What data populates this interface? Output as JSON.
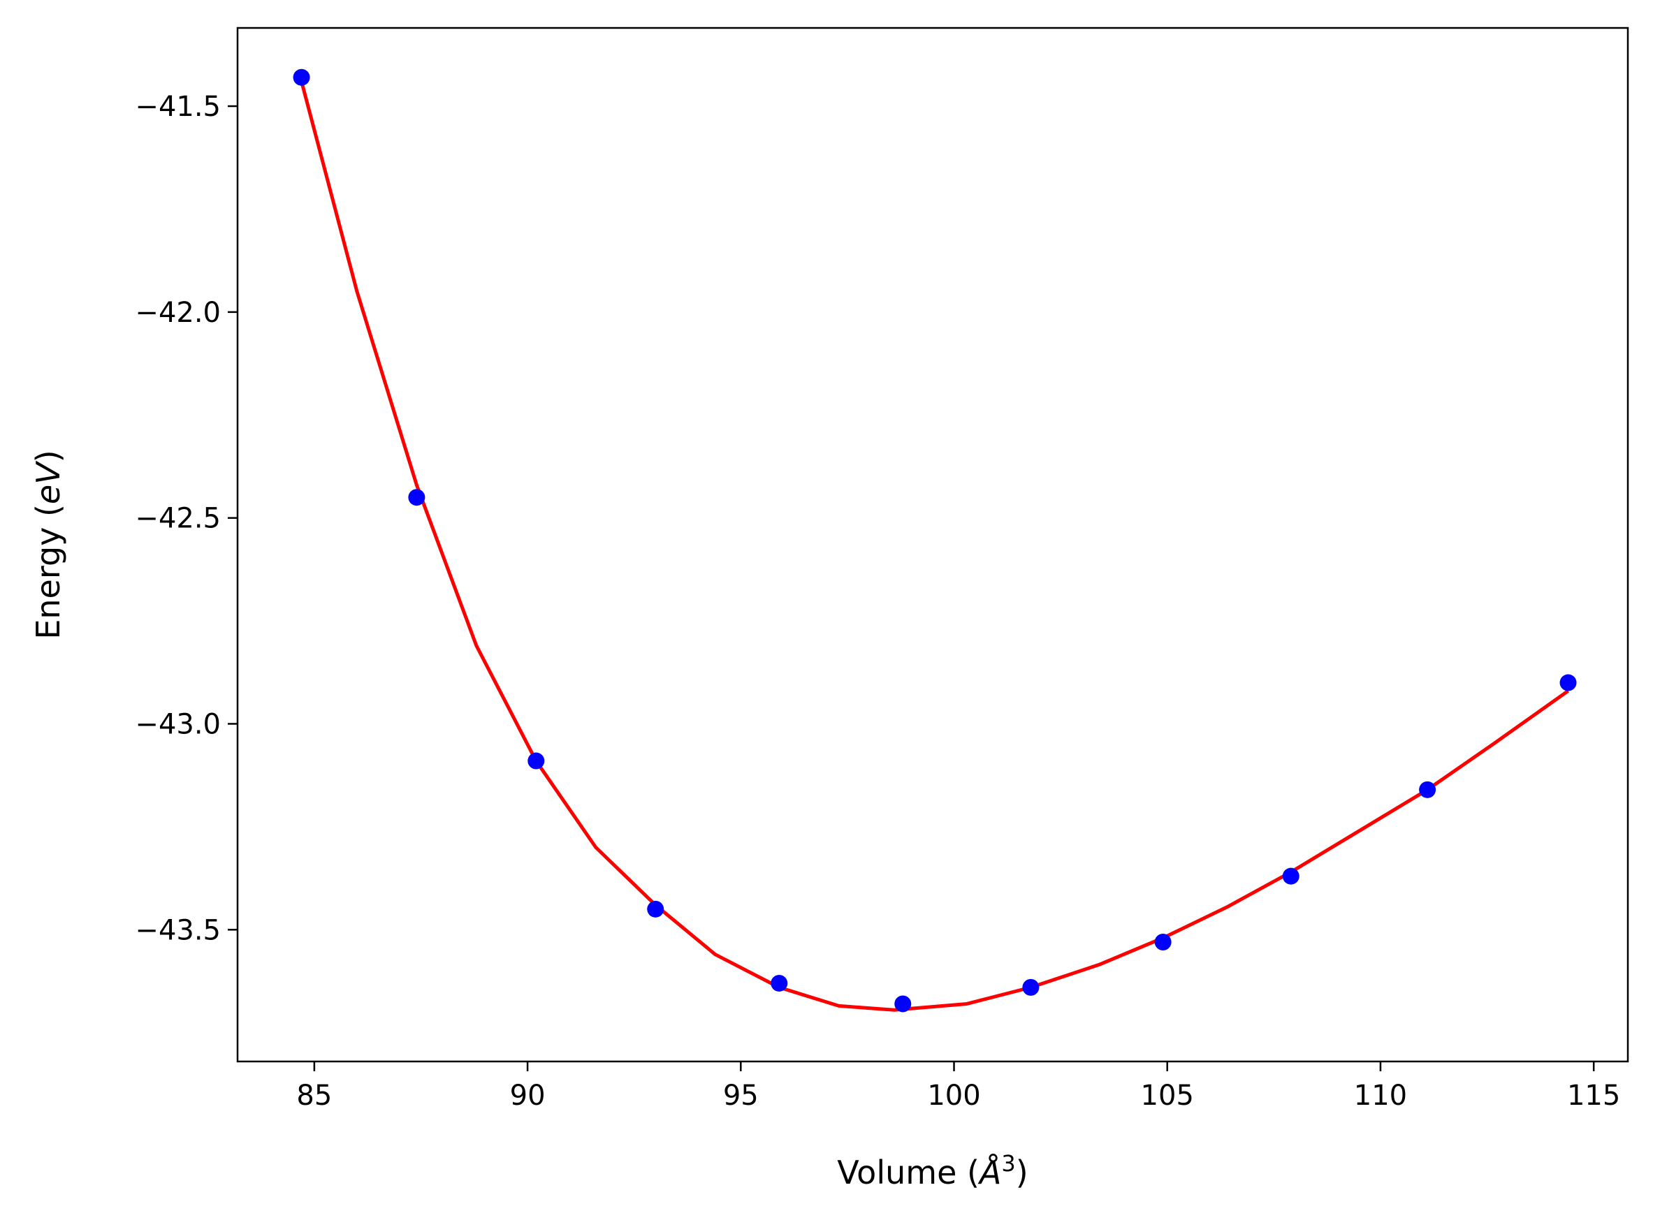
{
  "chart_data": {
    "type": "scatter",
    "xlabel": "Volume (Å³)",
    "xlabel_parts": {
      "prefix": "Volume (",
      "symbol": "Å",
      "sup": "3",
      "suffix": ")"
    },
    "ylabel": "Energy (eV)",
    "ylabel_parts": {
      "prefix": "Energy (",
      "unit": "eV",
      "suffix": ")"
    },
    "xlim": [
      83.2,
      115.8
    ],
    "ylim": [
      -43.82,
      -41.31
    ],
    "xticks": [
      85,
      90,
      95,
      100,
      105,
      110,
      115
    ],
    "yticks": [
      -41.5,
      -42.0,
      -42.5,
      -43.0,
      -43.5
    ],
    "grid": false,
    "series": [
      {
        "type": "scatter",
        "color": "#0000ff",
        "x": [
          84.7,
          87.4,
          90.2,
          93.0,
          95.9,
          98.8,
          101.8,
          104.9,
          107.9,
          111.1,
          114.4
        ],
        "y": [
          -41.43,
          -42.45,
          -43.09,
          -43.45,
          -43.63,
          -43.68,
          -43.64,
          -43.53,
          -43.37,
          -43.16,
          -42.9
        ]
      },
      {
        "type": "line",
        "color": "#ff0000",
        "x": [
          84.7,
          86.0,
          87.4,
          88.8,
          90.2,
          91.6,
          93.0,
          94.4,
          95.9,
          97.3,
          98.6,
          100.3,
          101.8,
          103.4,
          104.9,
          106.4,
          107.9,
          109.5,
          111.1,
          112.7,
          114.4
        ],
        "y": [
          -41.44,
          -41.95,
          -42.42,
          -42.81,
          -43.09,
          -43.3,
          -43.44,
          -43.56,
          -43.64,
          -43.685,
          -43.695,
          -43.68,
          -43.64,
          -43.585,
          -43.52,
          -43.445,
          -43.36,
          -43.26,
          -43.16,
          -43.045,
          -42.92
        ]
      }
    ]
  }
}
